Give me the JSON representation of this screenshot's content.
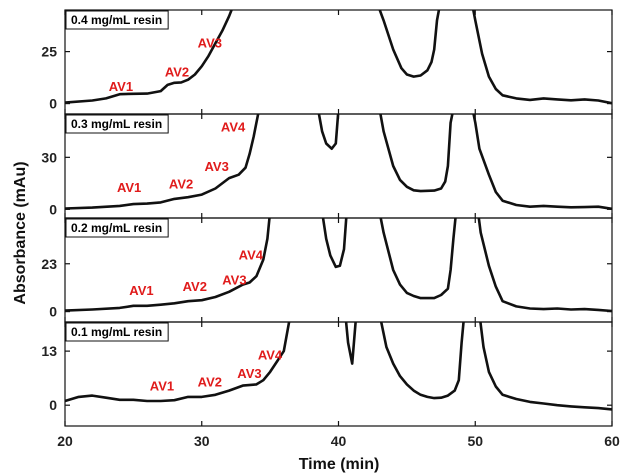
{
  "chart_data": {
    "type": "line",
    "xlabel": "Time (min)",
    "ylabel": "Absorbance (mAu)",
    "xlim": [
      20,
      60
    ],
    "xticks": [
      20,
      30,
      40,
      50,
      60
    ],
    "panels": [
      {
        "label": "0.4 mg/mL resin",
        "ylim": [
          -5,
          45
        ],
        "yticks": [
          0,
          25
        ],
        "points": [
          [
            20,
            0.5
          ],
          [
            22,
            1.5
          ],
          [
            23,
            2.5
          ],
          [
            24,
            4.5
          ],
          [
            25,
            4.7
          ],
          [
            26,
            4.8
          ],
          [
            27,
            6
          ],
          [
            27.5,
            9
          ],
          [
            28,
            10
          ],
          [
            28.5,
            10.2
          ],
          [
            29,
            11.5
          ],
          [
            29.5,
            14
          ],
          [
            30,
            18
          ],
          [
            30.5,
            23
          ],
          [
            31,
            29
          ],
          [
            31.5,
            35
          ],
          [
            32,
            42
          ],
          [
            32.3,
            47
          ],
          [
            42.9,
            47
          ],
          [
            43.3,
            40
          ],
          [
            44,
            26
          ],
          [
            44.6,
            17
          ],
          [
            45,
            14
          ],
          [
            45.5,
            13
          ],
          [
            46,
            13.5
          ],
          [
            46.5,
            16
          ],
          [
            46.8,
            20
          ],
          [
            47,
            26
          ],
          [
            47.2,
            40
          ],
          [
            47.4,
            47
          ],
          [
            49.8,
            47
          ],
          [
            50,
            40
          ],
          [
            50.5,
            24
          ],
          [
            51,
            13
          ],
          [
            51.5,
            7
          ],
          [
            52,
            4
          ],
          [
            53,
            2.5
          ],
          [
            54,
            1.8
          ],
          [
            55,
            2.5
          ],
          [
            56,
            2
          ],
          [
            57,
            1.6
          ],
          [
            58,
            2
          ],
          [
            59,
            1.5
          ],
          [
            60,
            0.2
          ]
        ],
        "annotations": [
          {
            "text": "AV1",
            "x": 23.2,
            "y": 6
          },
          {
            "text": "AV2",
            "x": 27.3,
            "y": 13
          },
          {
            "text": "AV3",
            "x": 29.7,
            "y": 27
          }
        ]
      },
      {
        "label": "0.3 mg/mL resin",
        "ylim": [
          -5,
          55
        ],
        "yticks": [
          0,
          30
        ],
        "points": [
          [
            20,
            0.5
          ],
          [
            22,
            1
          ],
          [
            24,
            2
          ],
          [
            25,
            3
          ],
          [
            26,
            3.3
          ],
          [
            27,
            4
          ],
          [
            28,
            6
          ],
          [
            29,
            7
          ],
          [
            30,
            8.5
          ],
          [
            31,
            12
          ],
          [
            32,
            18
          ],
          [
            32.7,
            20
          ],
          [
            33.2,
            24
          ],
          [
            33.5,
            32
          ],
          [
            33.8,
            42
          ],
          [
            34,
            50
          ],
          [
            34.2,
            58
          ],
          [
            38.5,
            58
          ],
          [
            38.8,
            45
          ],
          [
            39.1,
            38
          ],
          [
            39.5,
            35
          ],
          [
            39.8,
            38
          ],
          [
            40,
            58
          ],
          [
            43,
            58
          ],
          [
            43.3,
            45
          ],
          [
            44,
            25
          ],
          [
            44.5,
            17
          ],
          [
            45,
            13
          ],
          [
            45.5,
            11
          ],
          [
            46,
            10.5
          ],
          [
            47,
            10.8
          ],
          [
            47.5,
            12
          ],
          [
            47.8,
            16
          ],
          [
            48,
            25
          ],
          [
            48.2,
            50
          ],
          [
            48.4,
            58
          ],
          [
            49.8,
            58
          ],
          [
            50,
            50
          ],
          [
            50.3,
            35
          ],
          [
            51,
            20
          ],
          [
            51.5,
            10
          ],
          [
            52,
            5
          ],
          [
            53,
            2.5
          ],
          [
            54,
            1.5
          ],
          [
            55,
            2
          ],
          [
            56,
            1.5
          ],
          [
            57,
            1.2
          ],
          [
            58,
            1.3
          ],
          [
            59,
            1.5
          ],
          [
            60,
            0.3
          ]
        ],
        "annotations": [
          {
            "text": "AV1",
            "x": 23.8,
            "y": 10
          },
          {
            "text": "AV2",
            "x": 27.6,
            "y": 12
          },
          {
            "text": "AV3",
            "x": 30.2,
            "y": 22
          },
          {
            "text": "AV4",
            "x": 31.4,
            "y": 45
          }
        ]
      },
      {
        "label": "0.2 mg/mL resin",
        "ylim": [
          -5,
          45
        ],
        "yticks": [
          0,
          23
        ],
        "points": [
          [
            20,
            0.5
          ],
          [
            22,
            1
          ],
          [
            24,
            1.8
          ],
          [
            25,
            2.8
          ],
          [
            26,
            2.8
          ],
          [
            27,
            3.3
          ],
          [
            28,
            4
          ],
          [
            29,
            5
          ],
          [
            30,
            5.5
          ],
          [
            31,
            7
          ],
          [
            32,
            9.5
          ],
          [
            33,
            13
          ],
          [
            33.5,
            14
          ],
          [
            34,
            17
          ],
          [
            34.5,
            25
          ],
          [
            34.8,
            35
          ],
          [
            35,
            48
          ],
          [
            38.8,
            48
          ],
          [
            39.1,
            35
          ],
          [
            39.4,
            27
          ],
          [
            39.8,
            21.5
          ],
          [
            40.1,
            22
          ],
          [
            40.4,
            30
          ],
          [
            40.6,
            48
          ],
          [
            43,
            48
          ],
          [
            43.3,
            38
          ],
          [
            44,
            20
          ],
          [
            44.5,
            13
          ],
          [
            45,
            9
          ],
          [
            45.5,
            7.5
          ],
          [
            46,
            6.5
          ],
          [
            47,
            6.5
          ],
          [
            47.5,
            8
          ],
          [
            48,
            11
          ],
          [
            48.2,
            20
          ],
          [
            48.4,
            35
          ],
          [
            48.6,
            48
          ],
          [
            50.2,
            48
          ],
          [
            50.4,
            38
          ],
          [
            51,
            22
          ],
          [
            51.5,
            12
          ],
          [
            52,
            5
          ],
          [
            53,
            2.5
          ],
          [
            54,
            1.5
          ],
          [
            55,
            1.2
          ],
          [
            56,
            1.5
          ],
          [
            57,
            1
          ],
          [
            58,
            1.2
          ],
          [
            59,
            0.8
          ],
          [
            60,
            0.3
          ]
        ],
        "annotations": [
          {
            "text": "AV1",
            "x": 24.7,
            "y": 8
          },
          {
            "text": "AV2",
            "x": 28.6,
            "y": 10
          },
          {
            "text": "AV3",
            "x": 31.5,
            "y": 13
          },
          {
            "text": "AV4",
            "x": 32.7,
            "y": 25
          }
        ]
      },
      {
        "label": "0.1 mg/mL resin",
        "ylim": [
          -5,
          20
        ],
        "yticks": [
          0,
          13
        ],
        "points": [
          [
            20,
            1
          ],
          [
            21,
            2
          ],
          [
            22,
            2.3
          ],
          [
            23,
            1.8
          ],
          [
            24,
            1.3
          ],
          [
            25,
            1.3
          ],
          [
            26,
            1
          ],
          [
            27,
            1
          ],
          [
            28,
            1.2
          ],
          [
            29,
            2
          ],
          [
            30,
            2
          ],
          [
            31,
            2.5
          ],
          [
            32,
            3.5
          ],
          [
            33,
            4.7
          ],
          [
            34,
            5
          ],
          [
            34.5,
            6
          ],
          [
            35,
            8
          ],
          [
            35.5,
            10.5
          ],
          [
            36,
            13
          ],
          [
            36.5,
            22
          ],
          [
            40.5,
            22
          ],
          [
            40.7,
            15
          ],
          [
            41,
            10
          ],
          [
            41.3,
            22
          ],
          [
            43,
            22
          ],
          [
            43.5,
            14
          ],
          [
            44,
            10
          ],
          [
            44.5,
            7
          ],
          [
            45,
            5
          ],
          [
            45.5,
            3.5
          ],
          [
            46,
            2.5
          ],
          [
            46.5,
            2
          ],
          [
            47,
            1.7
          ],
          [
            47.5,
            1.8
          ],
          [
            48,
            2.3
          ],
          [
            48.5,
            3.5
          ],
          [
            48.8,
            6
          ],
          [
            49,
            15
          ],
          [
            49.2,
            22
          ],
          [
            50.3,
            22
          ],
          [
            50.6,
            14
          ],
          [
            51,
            8
          ],
          [
            51.5,
            4.5
          ],
          [
            52,
            2.5
          ],
          [
            53,
            1.5
          ],
          [
            54,
            0.8
          ],
          [
            55,
            0.4
          ],
          [
            56,
            0
          ],
          [
            57,
            -0.3
          ],
          [
            58,
            -0.5
          ],
          [
            59,
            -0.7
          ],
          [
            60,
            -1
          ]
        ],
        "annotations": [
          {
            "text": "AV1",
            "x": 26.2,
            "y": 3.5
          },
          {
            "text": "AV2",
            "x": 29.7,
            "y": 4.5
          },
          {
            "text": "AV3",
            "x": 32.6,
            "y": 6.5
          },
          {
            "text": "AV4",
            "x": 34.1,
            "y": 11
          }
        ]
      }
    ]
  }
}
